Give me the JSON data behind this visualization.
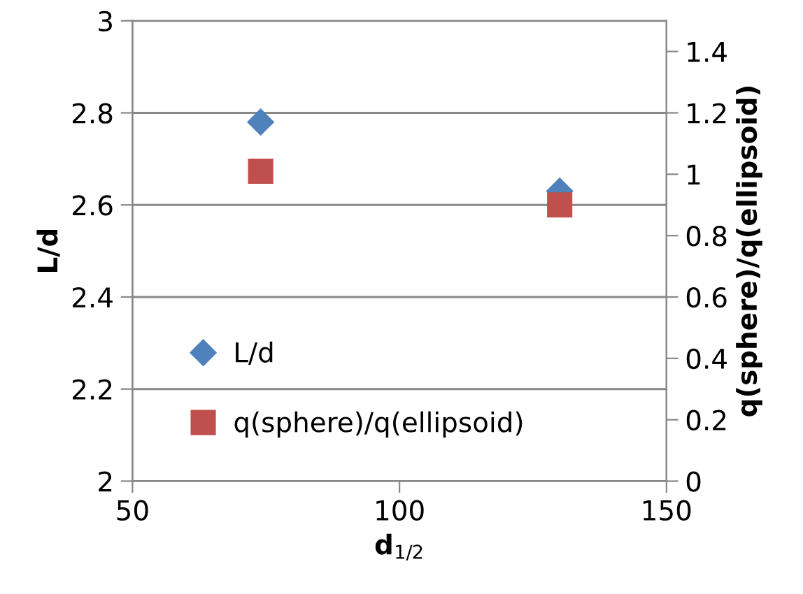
{
  "chart_data": {
    "type": "scatter",
    "xlabel": "d$_{1/2}$",
    "ylabel": "L/d",
    "y2label": "q(sphere)/q(ellipsoid)",
    "x": [
      74,
      130
    ],
    "series": [
      {
        "name": "L/d",
        "color": "#4f81bd",
        "values": [
          2.78,
          2.63
        ],
        "marker": "diamond"
      },
      {
        "name": "q(sphere)/q(ellipsoid)",
        "color": "#c0504d",
        "values": [
          1.01,
          0.9
        ],
        "marker": "square",
        "axis": "y2"
      }
    ],
    "xlim": [
      50,
      150
    ],
    "xticks": [
      50,
      100,
      150
    ],
    "ylim": [
      2,
      3
    ],
    "yticks": [
      2,
      2.2,
      2.4,
      2.6,
      2.8,
      3
    ],
    "y2lim": [
      0,
      1.5
    ],
    "y2ticks": [
      0,
      0.2,
      0.4,
      0.6,
      0.8,
      1,
      1.2,
      1.4
    ],
    "grid": "y",
    "legend": "bottom left"
  }
}
